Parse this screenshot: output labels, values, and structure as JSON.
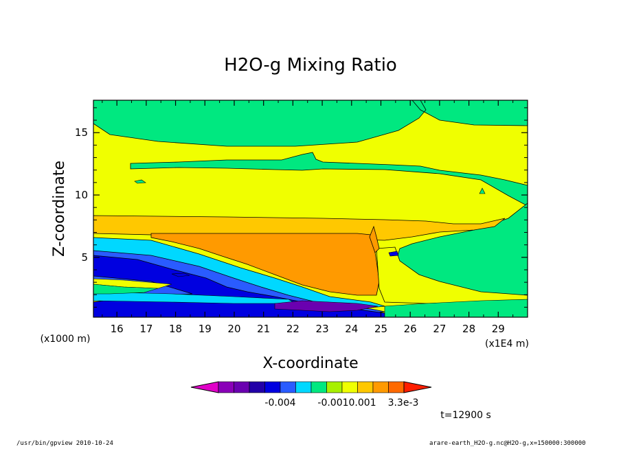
{
  "chart_data": {
    "type": "heatmap",
    "title": "H2O-g Mixing Ratio",
    "xlabel": "X-coordinate",
    "ylabel": "Z-coordinate",
    "xunit": "(x1E4 m)",
    "yunit": "(x1000 m)",
    "xlim": [
      15.2,
      30.0
    ],
    "ylim": [
      0.2,
      17.6
    ],
    "xticks": [
      "16",
      "17",
      "18",
      "19",
      "20",
      "21",
      "22",
      "23",
      "24",
      "25",
      "26",
      "27",
      "28",
      "29"
    ],
    "yticks": [
      "5",
      "10",
      "15"
    ],
    "colorbar": {
      "colors": [
        "#e000c8",
        "#8a00b8",
        "#6a00b0",
        "#2200a8",
        "#0000e0",
        "#2a5cff",
        "#00d8ff",
        "#00e880",
        "#a8f000",
        "#f0ff00",
        "#ffc800",
        "#ff9a00",
        "#ff6a00",
        "#ff1e00"
      ],
      "labels": [
        "-0.004",
        "-0.0010.001",
        "3.3e-3"
      ]
    },
    "time_label": "t=12900 s"
  },
  "footer": {
    "left": "/usr/bin/gpview  2010-10-24",
    "right": "arare-earth_H2O-g.nc@H2O-g,x=150000:300000"
  }
}
